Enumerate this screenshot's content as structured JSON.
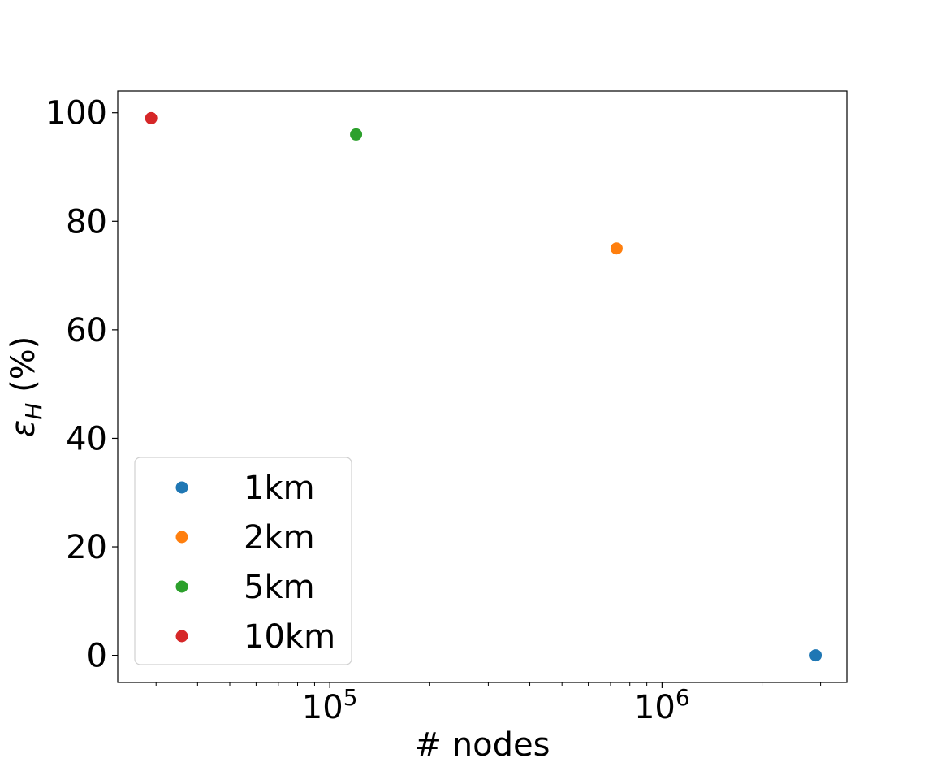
{
  "chart_data": {
    "type": "scatter",
    "title": "",
    "xlabel": "# nodes",
    "ylabel_main": "ε",
    "ylabel_sub": "H",
    "ylabel_suffix": " (%)",
    "xscale": "log",
    "xlim": [
      23000,
      3600000
    ],
    "ylim": [
      -5,
      104
    ],
    "x_major_ticks": [
      {
        "value": 100000,
        "base": "10",
        "exp": "5"
      },
      {
        "value": 1000000,
        "base": "10",
        "exp": "6"
      }
    ],
    "y_ticks": [
      0,
      20,
      40,
      60,
      80,
      100
    ],
    "grid": false,
    "legend_position": "lower-left",
    "series": [
      {
        "name": "1km",
        "color": "#1f77b4",
        "points": [
          {
            "x": 2900000,
            "y": 0
          }
        ]
      },
      {
        "name": "2km",
        "color": "#ff7f0e",
        "points": [
          {
            "x": 730000,
            "y": 75
          }
        ]
      },
      {
        "name": "5km",
        "color": "#2ca02c",
        "points": [
          {
            "x": 120000,
            "y": 96
          }
        ]
      },
      {
        "name": "10km",
        "color": "#d62728",
        "points": [
          {
            "x": 29000,
            "y": 99
          }
        ]
      }
    ]
  }
}
